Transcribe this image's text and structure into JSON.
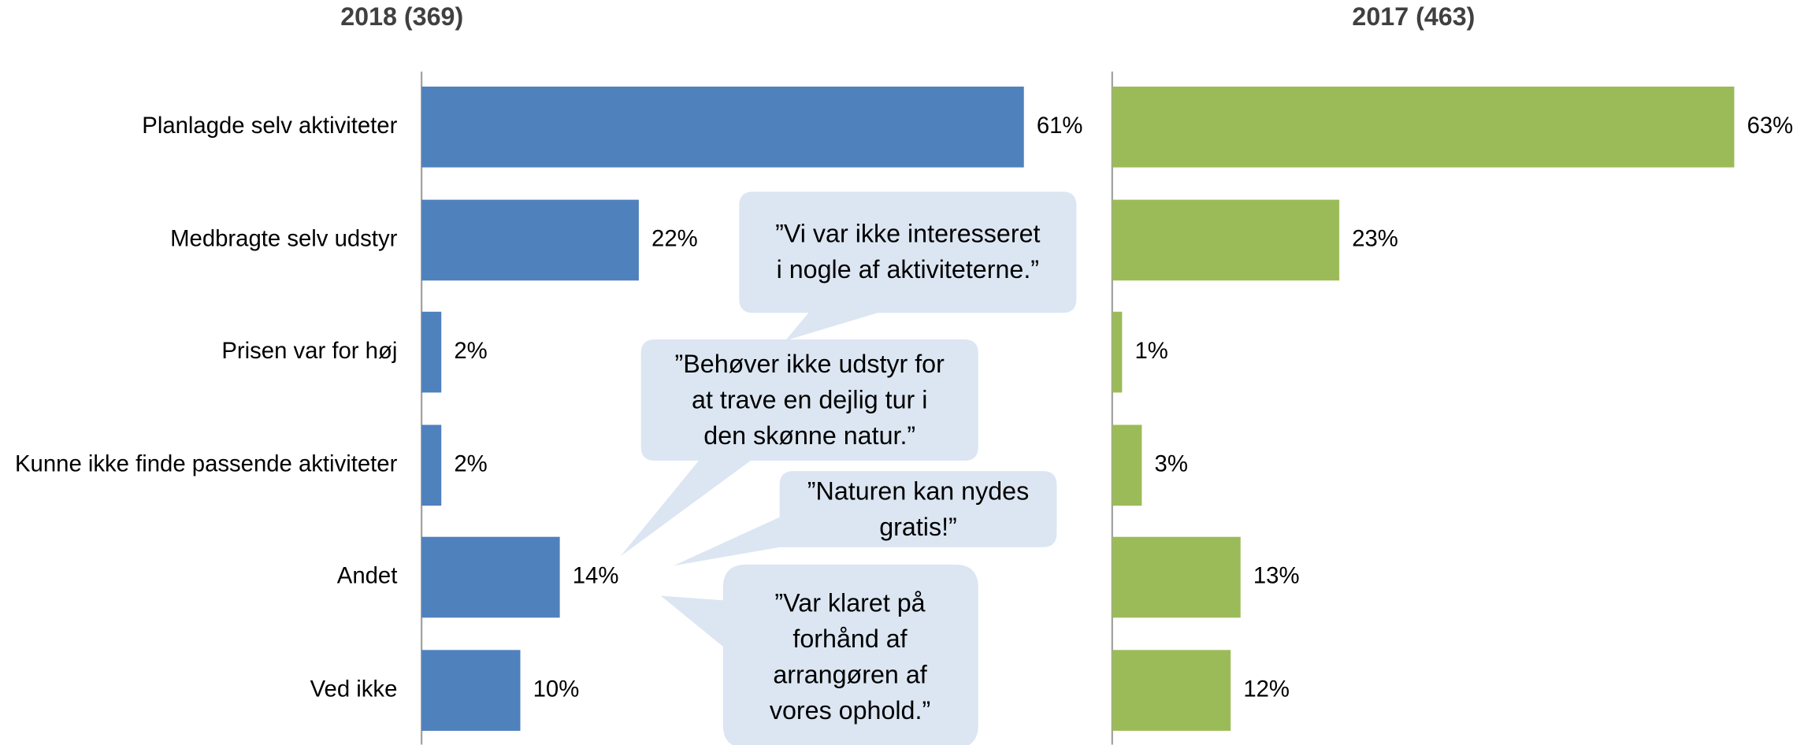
{
  "chart_data": [
    {
      "type": "bar",
      "orientation": "horizontal",
      "title": "2018 (369)",
      "categories": [
        "Planlagde selv aktiviteter",
        "Medbragte selv udstyr",
        "Prisen var for høj",
        "Kunne ikke finde passende aktiviteter",
        "Andet",
        "Ved ikke"
      ],
      "values": [
        61,
        22,
        2,
        2,
        14,
        10
      ],
      "value_labels": [
        "61%",
        "22%",
        "2%",
        "2%",
        "14%",
        "10%"
      ],
      "color": "#4f81bd"
    },
    {
      "type": "bar",
      "orientation": "horizontal",
      "title": "2017 (463)",
      "values": [
        63,
        23,
        1,
        3,
        13,
        12
      ],
      "value_labels": [
        "63%",
        "23%",
        "1%",
        "3%",
        "13%",
        "12%"
      ],
      "color": "#9bbb59"
    }
  ],
  "annotations": [
    [
      "”Vi var ikke interesseret",
      "i nogle af aktiviteterne.”"
    ],
    [
      "”Behøver ikke udstyr for",
      "at trave en dejlig tur i",
      "den skønne natur.”"
    ],
    [
      "”Naturen kan nydes",
      "gratis!”"
    ],
    [
      "”Var klaret på",
      "forhånd af",
      "arrangøren af",
      "vores ophold.”"
    ]
  ]
}
